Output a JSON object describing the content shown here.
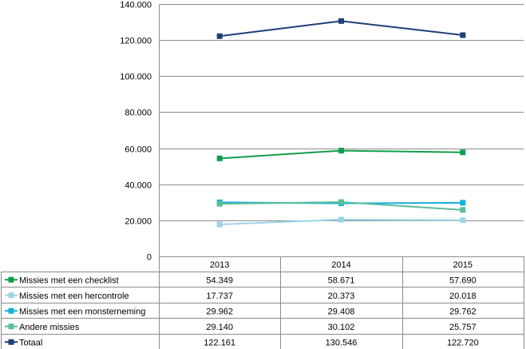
{
  "chart_data": {
    "type": "line",
    "categories": [
      "2013",
      "2014",
      "2015"
    ],
    "ylim": [
      0,
      140000
    ],
    "yticks": [
      {
        "value": 0,
        "label": "0"
      },
      {
        "value": 20000,
        "label": "20.000"
      },
      {
        "value": 40000,
        "label": "40.000"
      },
      {
        "value": 60000,
        "label": "60.000"
      },
      {
        "value": 80000,
        "label": "80.000"
      },
      {
        "value": 100000,
        "label": "100.000"
      },
      {
        "value": 120000,
        "label": "120.000"
      },
      {
        "value": 140000,
        "label": "140.000"
      }
    ],
    "grid": true,
    "legend_placement": "data-table",
    "series": [
      {
        "name": "Missies met een checklist",
        "color": "#0f9f4a",
        "values": [
          54349,
          58671,
          57690
        ],
        "labels": [
          "54.349",
          "58.671",
          "57.690"
        ]
      },
      {
        "name": "Missies met een hercontrole",
        "color": "#9bd3e6",
        "values": [
          17737,
          20373,
          20018
        ],
        "labels": [
          "17.737",
          "20.373",
          "20.018"
        ]
      },
      {
        "name": "Missies met een monsterneming",
        "color": "#14aee0",
        "values": [
          29962,
          29408,
          29762
        ],
        "labels": [
          "29.962",
          "29.408",
          "29.762"
        ]
      },
      {
        "name": "Andere missies",
        "color": "#5dbd9a",
        "values": [
          29140,
          30102,
          25757
        ],
        "labels": [
          "29.140",
          "30.102",
          "25.757"
        ]
      },
      {
        "name": "Totaal",
        "color": "#1f3f77",
        "values": [
          122161,
          130546,
          122720
        ],
        "labels": [
          "122.161",
          "130.546",
          "122.720"
        ]
      }
    ]
  }
}
